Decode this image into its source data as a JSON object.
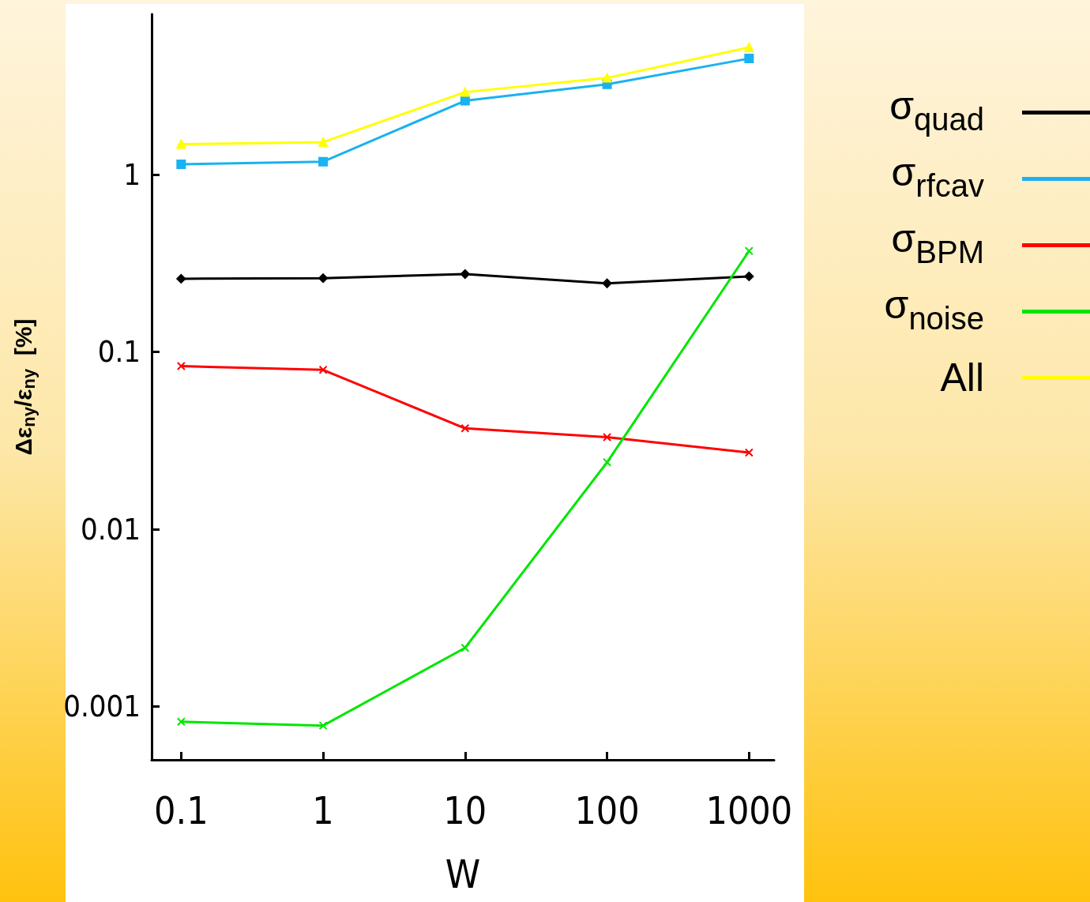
{
  "chart_data": {
    "type": "line",
    "xlabel": "W",
    "ylabel": "Δε$_{ny}$/ε$_{ny}$  [%]",
    "log": "xy",
    "x": [
      0.1,
      1,
      10,
      100,
      1000
    ],
    "xlim": [
      0.062,
      1500
    ],
    "xticks": [
      0.1,
      1,
      10,
      100,
      1000
    ],
    "ylim": [
      0.0005,
      8
    ],
    "yticks": [
      0.001,
      0.01,
      0.1,
      1
    ],
    "grid": false,
    "legend": "right",
    "line_style": "solid",
    "series": [
      {
        "name": "σ$_{quad}$",
        "color": "#000000",
        "marker": "diamond",
        "values": [
          0.258,
          0.26,
          0.274,
          0.243,
          0.266
        ]
      },
      {
        "name": "σ$_{rfcav}$",
        "color": "#1ab2f0",
        "marker": "square",
        "values": [
          1.14,
          1.18,
          2.6,
          3.22,
          4.5
        ]
      },
      {
        "name": "σ$_{BPM}$",
        "color": "#ff0000",
        "marker": "cross",
        "values": [
          0.083,
          0.079,
          0.037,
          0.033,
          0.027
        ]
      },
      {
        "name": "σ$_{noise}$",
        "color": "#00e600",
        "marker": "cross",
        "values": [
          0.00082,
          0.00078,
          0.00214,
          0.0238,
          0.37
        ]
      },
      {
        "name": "All",
        "color": "#ffff00",
        "marker": "triangle",
        "values": [
          1.48,
          1.52,
          2.91,
          3.5,
          5.2
        ]
      }
    ]
  }
}
